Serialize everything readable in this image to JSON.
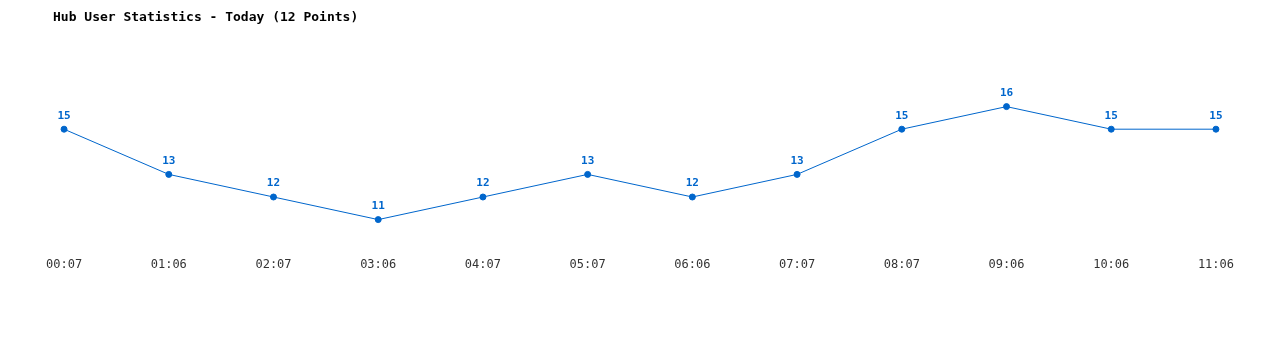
{
  "chart_data": {
    "type": "line",
    "title": "Hub User Statistics - Today (12 Points)",
    "categories": [
      "00:07",
      "01:06",
      "02:07",
      "03:06",
      "04:07",
      "05:07",
      "06:06",
      "07:07",
      "08:07",
      "09:06",
      "10:06",
      "11:06"
    ],
    "series": [
      {
        "color": "#0066cc",
        "values": [
          15,
          13,
          12,
          11,
          12,
          13,
          12,
          13,
          15,
          16,
          15,
          15
        ]
      }
    ],
    "data_labels": true,
    "marker": "circle",
    "line_style": "solid",
    "grid": false,
    "legend": false
  }
}
